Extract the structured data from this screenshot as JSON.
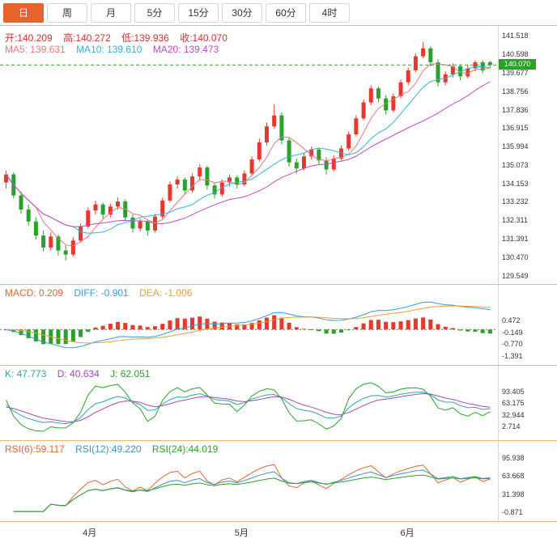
{
  "toolbar": {
    "buttons": [
      {
        "label": "日",
        "active": true
      },
      {
        "label": "周",
        "active": false
      },
      {
        "label": "月",
        "active": false
      },
      {
        "label": "5分",
        "active": false
      },
      {
        "label": "15分",
        "active": false
      },
      {
        "label": "30分",
        "active": false
      },
      {
        "label": "60分",
        "active": false
      },
      {
        "label": "4时",
        "active": false
      }
    ]
  },
  "main": {
    "ohlc": [
      "开:140.209",
      "高:140.272",
      "低:139.936",
      "收:140.070"
    ],
    "ma": [
      "MA5: 139.631",
      "MA10: 139.610",
      "MA20: 139.473"
    ],
    "price_badge": "140.070",
    "current_price": 140.07,
    "ticks": [
      "141.518",
      "140.598",
      "139.677",
      "138.756",
      "137.836",
      "136.915",
      "135.994",
      "135.073",
      "134.153",
      "133.232",
      "132.311",
      "131.391",
      "130.470",
      "129.549"
    ]
  },
  "macd": {
    "header": [
      "MACD: 0.209",
      "DIFF: -0.901",
      "DEA: -1.006"
    ],
    "ticks": [
      "0.472",
      "-0.149",
      "-0.770",
      "-1.391"
    ]
  },
  "kdj": {
    "header": [
      "K: 47.773",
      "D: 40.634",
      "J: 62.051"
    ],
    "ticks": [
      "93.405",
      "63.175",
      "32.944",
      "2.714"
    ]
  },
  "rsi": {
    "header": [
      "RSI(6):59.117",
      "RSI(12):49.220",
      "RSI(24):44.019"
    ],
    "ticks": [
      "95.938",
      "63.668",
      "31.398",
      "-0.871"
    ]
  },
  "xaxis": {
    "labels": [
      {
        "text": "4月",
        "pos": 0.18
      },
      {
        "text": "5月",
        "pos": 0.485
      },
      {
        "text": "6月",
        "pos": 0.818
      }
    ]
  },
  "colors": {
    "up": "#e8382c",
    "down": "#2aa12a",
    "text_red": "#d43030",
    "ma5": "#e87878",
    "ma10": "#2fb4dc",
    "ma20": "#c24ac2",
    "macd_label": "#e0652c",
    "diff": "#2fa0d8",
    "dea": "#e8a030",
    "k": "#2aa8a8",
    "d": "#a848b8",
    "j": "#2aa12a",
    "rsi6": "#e0652c",
    "rsi12": "#4090c8",
    "rsi24": "#2aa12a",
    "accent": "#e8622c",
    "separator": "#f0b678"
  },
  "chart_data": {
    "type": "candlestick",
    "ohlc_format": [
      "open",
      "high",
      "low",
      "close"
    ],
    "ylim": [
      129.549,
      141.518
    ],
    "month_start_indices": {
      "4月": 0,
      "5月": 22,
      "6月": 44
    },
    "overlays": [
      "MA5",
      "MA10",
      "MA20"
    ],
    "sub_panels": [
      "MACD(12,26,9)",
      "KDJ(9,3,3)",
      "RSI(6,12,24)"
    ],
    "candles": [
      [
        134.2,
        134.8,
        133.9,
        134.6
      ],
      [
        134.6,
        134.7,
        133.4,
        133.55
      ],
      [
        133.55,
        133.75,
        132.65,
        132.85
      ],
      [
        132.85,
        133.1,
        132.05,
        132.25
      ],
      [
        132.25,
        132.45,
        131.35,
        131.55
      ],
      [
        131.55,
        131.8,
        130.75,
        130.95
      ],
      [
        130.95,
        131.7,
        130.8,
        131.5
      ],
      [
        131.5,
        131.6,
        130.55,
        130.8
      ],
      [
        130.8,
        131.05,
        130.3,
        130.6
      ],
      [
        130.6,
        131.45,
        130.5,
        131.3
      ],
      [
        131.3,
        132.15,
        131.2,
        132.0
      ],
      [
        132.0,
        132.95,
        131.9,
        132.8
      ],
      [
        132.8,
        133.3,
        132.6,
        133.1
      ],
      [
        133.1,
        133.2,
        132.4,
        132.6
      ],
      [
        132.6,
        133.15,
        132.45,
        133.0
      ],
      [
        133.0,
        133.45,
        132.85,
        133.25
      ],
      [
        133.25,
        133.35,
        132.25,
        132.45
      ],
      [
        132.45,
        132.6,
        131.7,
        131.9
      ],
      [
        131.9,
        132.4,
        131.75,
        132.25
      ],
      [
        132.25,
        132.35,
        131.55,
        131.8
      ],
      [
        131.8,
        132.65,
        131.7,
        132.5
      ],
      [
        132.5,
        133.45,
        132.4,
        133.3
      ],
      [
        133.3,
        134.25,
        133.2,
        134.1
      ],
      [
        134.1,
        134.5,
        133.9,
        134.35
      ],
      [
        134.35,
        134.45,
        133.6,
        133.8
      ],
      [
        133.8,
        134.65,
        133.7,
        134.5
      ],
      [
        134.5,
        135.1,
        134.35,
        134.95
      ],
      [
        134.95,
        135.05,
        133.85,
        134.05
      ],
      [
        134.05,
        134.2,
        133.4,
        133.6
      ],
      [
        133.6,
        134.35,
        133.5,
        134.2
      ],
      [
        134.2,
        134.6,
        134.0,
        134.45
      ],
      [
        134.45,
        134.55,
        133.9,
        134.1
      ],
      [
        134.1,
        134.8,
        134.0,
        134.65
      ],
      [
        134.65,
        135.5,
        134.55,
        135.35
      ],
      [
        135.35,
        136.4,
        135.25,
        136.2
      ],
      [
        136.2,
        137.2,
        136.05,
        137.0
      ],
      [
        137.0,
        138.1,
        136.9,
        137.55
      ],
      [
        137.55,
        137.7,
        136.1,
        136.3
      ],
      [
        136.3,
        136.45,
        135.0,
        135.2
      ],
      [
        135.2,
        135.4,
        134.65,
        134.9
      ],
      [
        134.9,
        135.65,
        134.8,
        135.5
      ],
      [
        135.5,
        136.0,
        135.35,
        135.85
      ],
      [
        135.85,
        135.95,
        135.1,
        135.3
      ],
      [
        135.3,
        135.45,
        134.6,
        134.85
      ],
      [
        134.85,
        135.55,
        134.75,
        135.4
      ],
      [
        135.4,
        136.05,
        135.3,
        135.9
      ],
      [
        135.9,
        136.75,
        135.8,
        136.6
      ],
      [
        136.6,
        137.55,
        136.5,
        137.4
      ],
      [
        137.4,
        138.35,
        137.3,
        138.2
      ],
      [
        138.2,
        139.05,
        138.05,
        138.9
      ],
      [
        138.9,
        139.0,
        138.2,
        138.4
      ],
      [
        138.4,
        138.55,
        137.6,
        137.8
      ],
      [
        137.8,
        138.65,
        137.7,
        138.5
      ],
      [
        138.5,
        139.35,
        138.4,
        139.2
      ],
      [
        139.2,
        139.95,
        139.05,
        139.8
      ],
      [
        139.8,
        140.65,
        139.7,
        140.5
      ],
      [
        140.5,
        141.2,
        140.4,
        140.9
      ],
      [
        140.9,
        141.0,
        140.0,
        140.2
      ],
      [
        140.2,
        140.35,
        139.0,
        139.2
      ],
      [
        139.2,
        139.75,
        139.05,
        139.6
      ],
      [
        139.6,
        140.15,
        139.45,
        140.0
      ],
      [
        140.0,
        140.1,
        139.3,
        139.5
      ],
      [
        139.5,
        140.05,
        139.4,
        139.9
      ],
      [
        139.9,
        140.3,
        139.75,
        140.2
      ],
      [
        140.2,
        140.3,
        139.65,
        139.8
      ],
      [
        140.209,
        140.272,
        139.936,
        140.07
      ]
    ]
  }
}
